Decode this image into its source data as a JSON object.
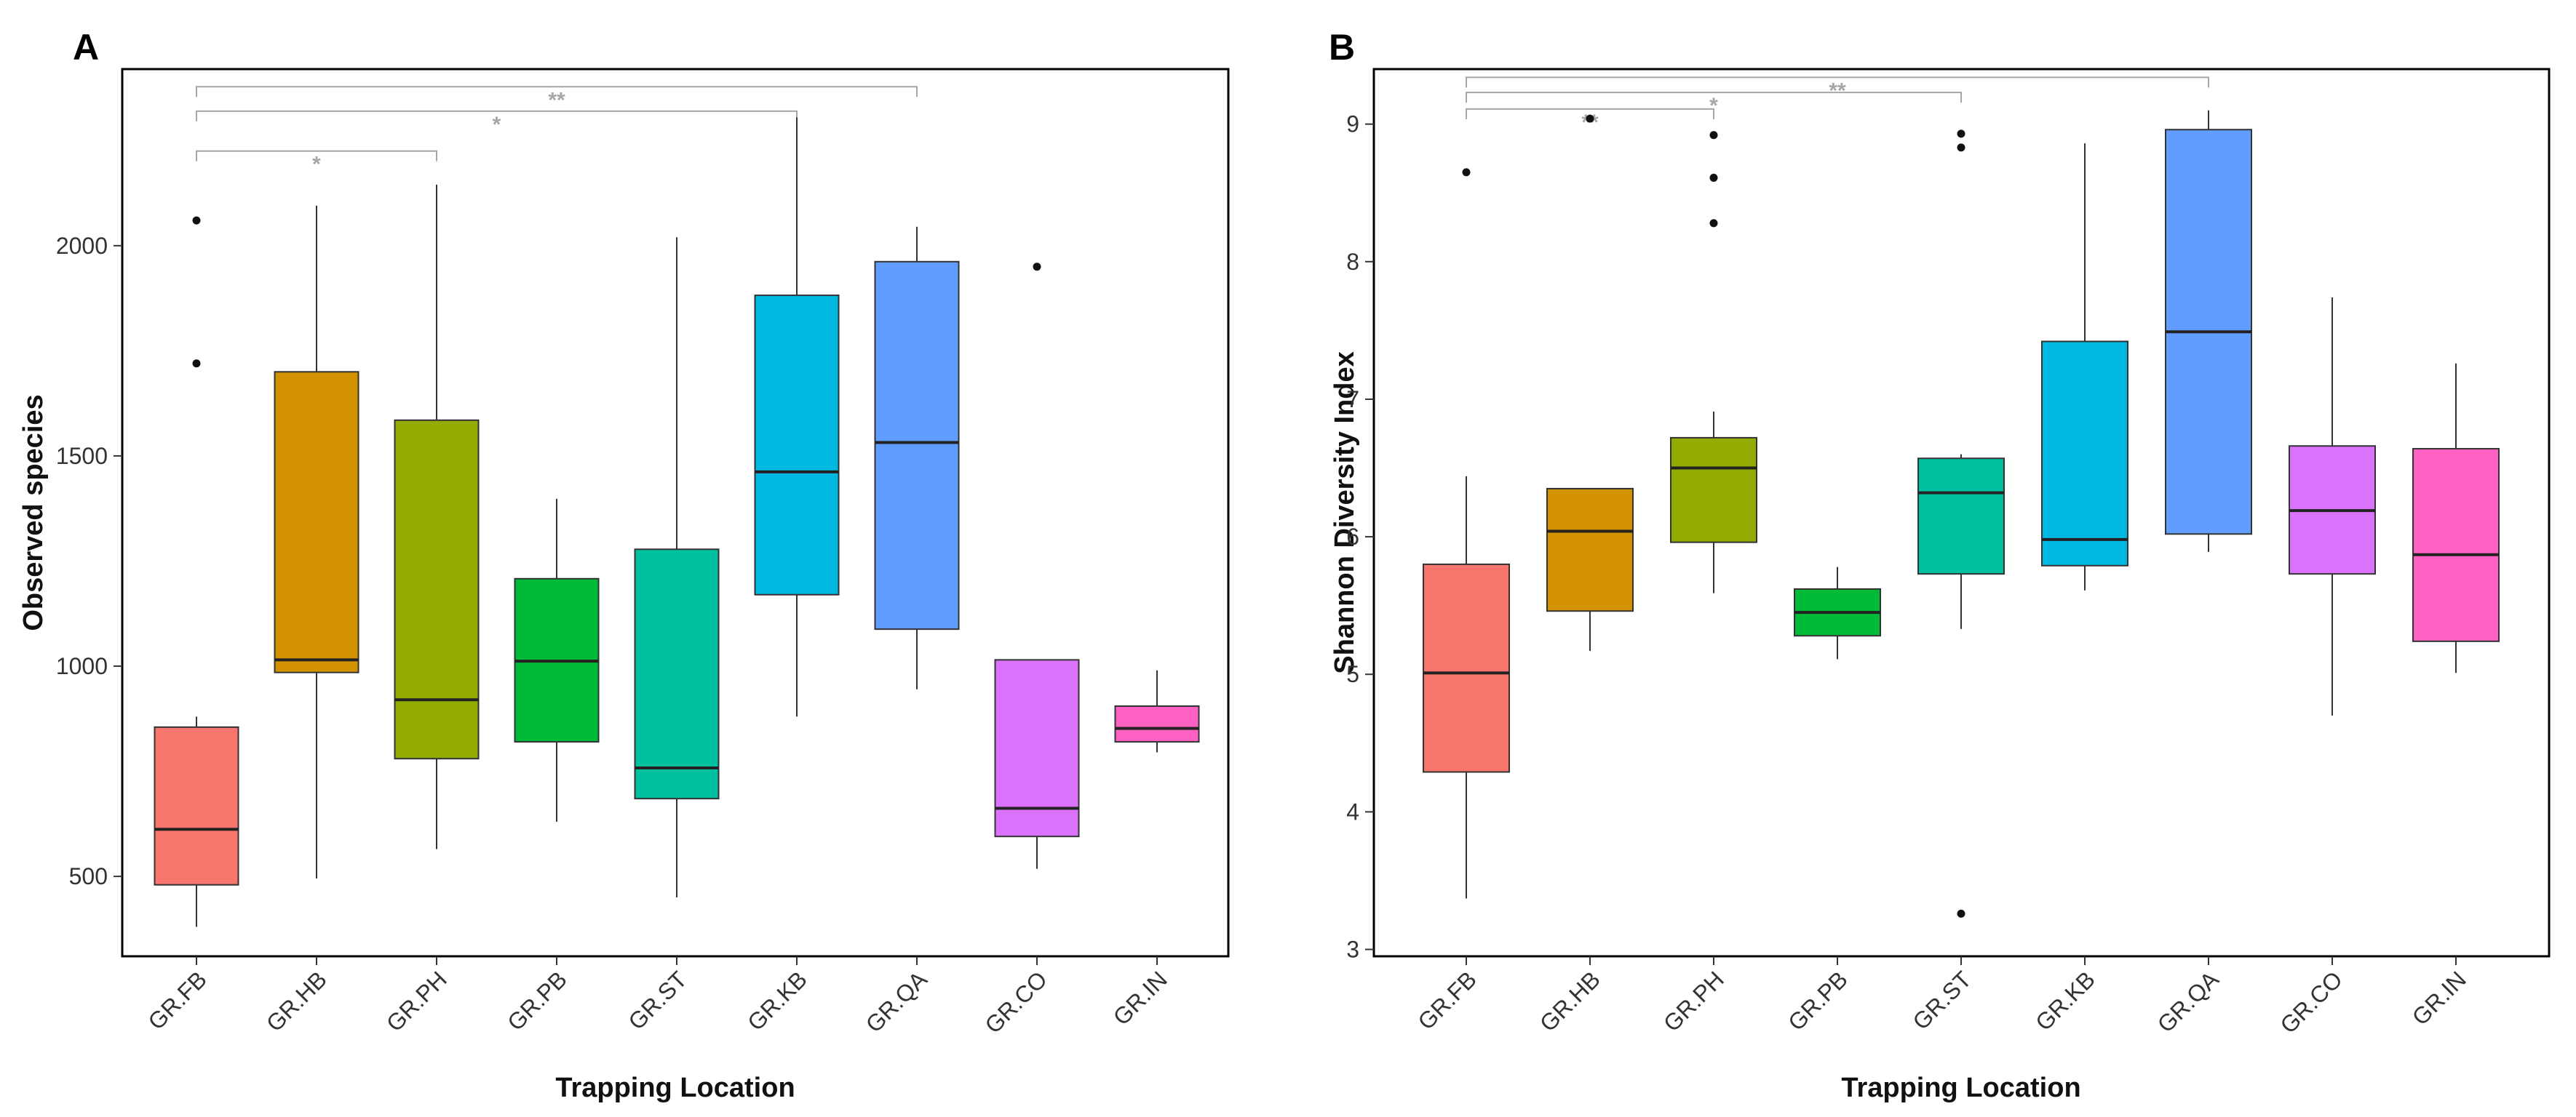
{
  "chart_data": [
    {
      "type": "box",
      "panel": "A",
      "title": "",
      "xlabel": "Trapping Location",
      "ylabel": "Observed species",
      "ylim": [
        310,
        2420
      ],
      "yticks": [
        500,
        1000,
        1500,
        2000
      ],
      "grid": false,
      "categories": [
        "GR.FB",
        "GR.HB",
        "GR.PH",
        "GR.PB",
        "GR.ST",
        "GR.KB",
        "GR.QA",
        "GR.CO",
        "GR.IN"
      ],
      "colors": [
        "#F8766D",
        "#D39200",
        "#93AA00",
        "#00BA38",
        "#00C19F",
        "#00B9E3",
        "#619CFF",
        "#DB72FB",
        "#FF61C3"
      ],
      "boxes": [
        {
          "whisker_low": 380,
          "q1": 480,
          "median": 612,
          "q3": 855,
          "whisker_high": 880,
          "outliers": [
            1720,
            2060
          ]
        },
        {
          "whisker_low": 495,
          "q1": 985,
          "median": 1015,
          "q3": 1700,
          "whisker_high": 2095,
          "outliers": []
        },
        {
          "whisker_low": 565,
          "q1": 780,
          "median": 920,
          "q3": 1585,
          "whisker_high": 2145,
          "outliers": []
        },
        {
          "whisker_low": 630,
          "q1": 820,
          "median": 1012,
          "q3": 1208,
          "whisker_high": 1398,
          "outliers": []
        },
        {
          "whisker_low": 450,
          "q1": 685,
          "median": 758,
          "q3": 1278,
          "whisker_high": 2020,
          "outliers": []
        },
        {
          "whisker_low": 880,
          "q1": 1170,
          "median": 1462,
          "q3": 1882,
          "whisker_high": 2305,
          "outliers": []
        },
        {
          "whisker_low": 945,
          "q1": 1088,
          "median": 1532,
          "q3": 1962,
          "whisker_high": 2045,
          "outliers": []
        },
        {
          "whisker_low": 518,
          "q1": 595,
          "median": 662,
          "q3": 1015,
          "whisker_high": 1015,
          "outliers": [
            1950
          ]
        },
        {
          "whisker_low": 795,
          "q1": 820,
          "median": 852,
          "q3": 905,
          "whisker_high": 990,
          "outliers": []
        }
      ],
      "significance": [
        {
          "from": 0,
          "to": 2,
          "value": 2225,
          "label": "*"
        },
        {
          "from": 0,
          "to": 5,
          "value": 2320,
          "label": "*"
        },
        {
          "from": 0,
          "to": 6,
          "value": 2378,
          "label": "**"
        }
      ]
    },
    {
      "type": "box",
      "panel": "B",
      "title": "",
      "xlabel": "Trapping Location",
      "ylabel": "Shannon Diversity Index",
      "ylim": [
        2.95,
        9.4
      ],
      "yticks": [
        3,
        4,
        5,
        6,
        7,
        8,
        9
      ],
      "grid": false,
      "categories": [
        "GR.FB",
        "GR.HB",
        "GR.PH",
        "GR.PB",
        "GR.ST",
        "GR.KB",
        "GR.QA",
        "GR.CO",
        "GR.IN"
      ],
      "colors": [
        "#F8766D",
        "#D39200",
        "#93AA00",
        "#00BA38",
        "#00C19F",
        "#00B9E3",
        "#619CFF",
        "#DB72FB",
        "#FF61C3"
      ],
      "boxes": [
        {
          "whisker_low": 3.37,
          "q1": 4.29,
          "median": 5.01,
          "q3": 5.8,
          "whisker_high": 6.44,
          "outliers": [
            8.65
          ]
        },
        {
          "whisker_low": 5.17,
          "q1": 5.46,
          "median": 6.04,
          "q3": 6.35,
          "whisker_high": 6.35,
          "outliers": [
            9.04
          ]
        },
        {
          "whisker_low": 5.59,
          "q1": 5.96,
          "median": 6.5,
          "q3": 6.72,
          "whisker_high": 6.91,
          "outliers": [
            8.28,
            8.61,
            8.92
          ]
        },
        {
          "whisker_low": 5.11,
          "q1": 5.28,
          "median": 5.45,
          "q3": 5.62,
          "whisker_high": 5.78,
          "outliers": []
        },
        {
          "whisker_low": 5.33,
          "q1": 5.73,
          "median": 6.32,
          "q3": 6.57,
          "whisker_high": 6.6,
          "outliers": [
            3.26,
            8.83,
            8.93
          ]
        },
        {
          "whisker_low": 5.61,
          "q1": 5.79,
          "median": 5.98,
          "q3": 7.42,
          "whisker_high": 8.86,
          "outliers": []
        },
        {
          "whisker_low": 5.89,
          "q1": 6.02,
          "median": 7.49,
          "q3": 8.96,
          "whisker_high": 9.1,
          "outliers": []
        },
        {
          "whisker_low": 4.7,
          "q1": 5.73,
          "median": 6.19,
          "q3": 6.66,
          "whisker_high": 7.74,
          "outliers": []
        },
        {
          "whisker_low": 5.01,
          "q1": 5.24,
          "median": 5.87,
          "q3": 6.64,
          "whisker_high": 7.26,
          "outliers": []
        }
      ],
      "significance": [
        {
          "from": 0,
          "to": 2,
          "value": 9.11,
          "label": "**"
        },
        {
          "from": 0,
          "to": 4,
          "value": 9.23,
          "label": "*"
        },
        {
          "from": 0,
          "to": 6,
          "value": 9.34,
          "label": "**"
        }
      ]
    }
  ]
}
